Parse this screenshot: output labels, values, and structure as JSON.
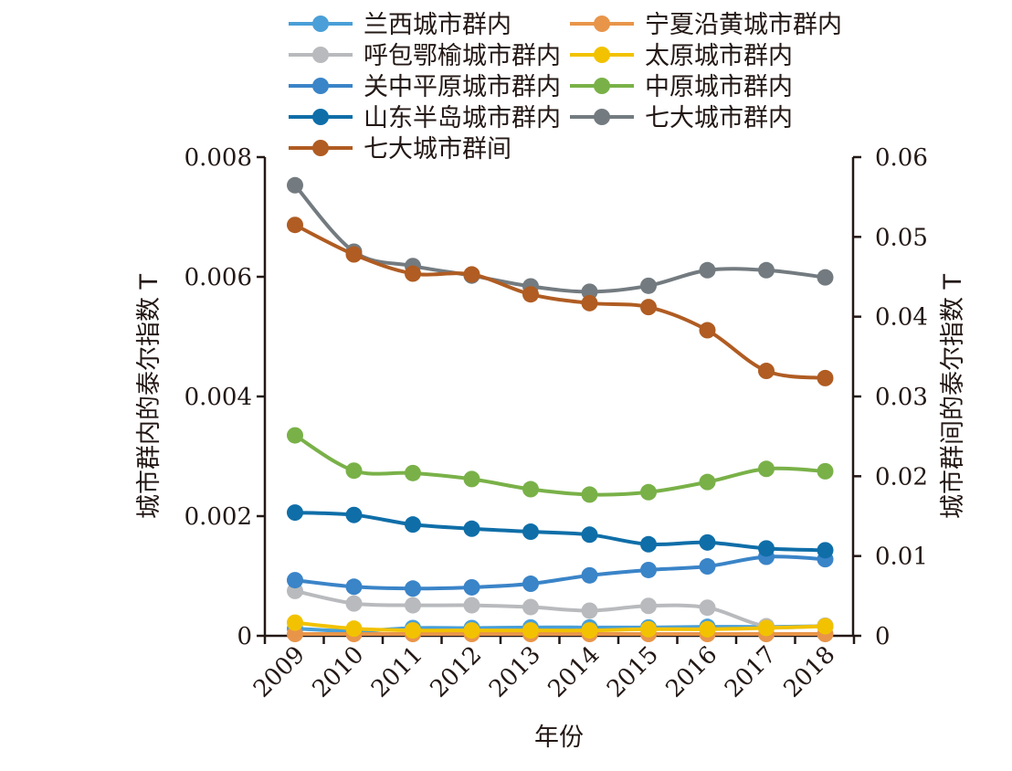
{
  "chart_data": {
    "type": "line",
    "x": [
      "2009",
      "2010",
      "2011",
      "2012",
      "2013",
      "2014",
      "2015",
      "2016",
      "2017",
      "2018"
    ],
    "xlabel": "年份",
    "ylabel_left": "城市群内的泰尔指数 T",
    "ylabel_right": "城市群间的泰尔指数 T",
    "ylim_left": [
      0,
      0.008
    ],
    "ylim_right": [
      0,
      0.06
    ],
    "yticks_left": [
      "0",
      "0.002",
      "0.004",
      "0.006",
      "0.008"
    ],
    "yticks_right": [
      "0",
      "0.01",
      "0.02",
      "0.03",
      "0.04",
      "0.05",
      "0.06"
    ],
    "grid": false,
    "legend_position": "top",
    "series": [
      {
        "name": "兰西城市群内",
        "axis": "left",
        "color": "#4a9fd8",
        "values": [
          0.00012,
          8e-05,
          0.00013,
          0.00013,
          0.00014,
          0.00014,
          0.00014,
          0.00015,
          0.00015,
          0.00016
        ]
      },
      {
        "name": "宁夏沿黄城市群内",
        "axis": "left",
        "color": "#e8954a",
        "values": [
          3e-05,
          3e-05,
          3e-05,
          3e-05,
          3e-05,
          3e-05,
          3e-05,
          3e-05,
          3e-05,
          3e-05
        ]
      },
      {
        "name": "呼包鄂榆城市群内",
        "axis": "left",
        "color": "#b8babd",
        "values": [
          0.00075,
          0.00054,
          0.00051,
          0.00051,
          0.00048,
          0.00042,
          0.0005,
          0.00047,
          0.00016,
          0.00017
        ]
      },
      {
        "name": "太原城市群内",
        "axis": "left",
        "color": "#f2c200",
        "values": [
          0.00022,
          0.00012,
          9e-05,
          9e-05,
          9e-05,
          9e-05,
          0.00011,
          0.00011,
          0.00013,
          0.00016
        ]
      },
      {
        "name": "关中平原城市群内",
        "axis": "left",
        "color": "#3a84c8",
        "values": [
          0.00093,
          0.00082,
          0.00079,
          0.00081,
          0.00087,
          0.00101,
          0.0011,
          0.00116,
          0.00132,
          0.00128
        ]
      },
      {
        "name": "中原城市群内",
        "axis": "left",
        "color": "#79b148",
        "values": [
          0.00335,
          0.00276,
          0.00272,
          0.00262,
          0.00245,
          0.00236,
          0.0024,
          0.00257,
          0.00279,
          0.00275
        ]
      },
      {
        "name": "山东半岛城市群内",
        "axis": "left",
        "color": "#0f6ea8",
        "values": [
          0.00206,
          0.00202,
          0.00186,
          0.00179,
          0.00174,
          0.00169,
          0.00153,
          0.00156,
          0.00146,
          0.00143
        ]
      },
      {
        "name": "七大城市群内",
        "axis": "left",
        "color": "#737b80",
        "values": [
          0.00753,
          0.00642,
          0.00618,
          0.00602,
          0.00584,
          0.00575,
          0.00585,
          0.00611,
          0.00611,
          0.00599
        ]
      },
      {
        "name": "七大城市群间",
        "axis": "right",
        "color": "#b05c22",
        "values": [
          0.0515,
          0.0478,
          0.0454,
          0.0453,
          0.0428,
          0.0417,
          0.0412,
          0.0383,
          0.0332,
          0.0323
        ]
      }
    ]
  }
}
